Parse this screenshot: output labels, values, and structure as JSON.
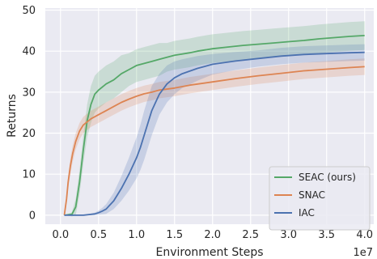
{
  "chart_data": {
    "type": "line",
    "title": "",
    "xlabel": "Environment Steps",
    "ylabel": "Returns",
    "x_scale_label": "1e7",
    "xlim": [
      -0.2,
      4.12
    ],
    "ylim": [
      -2.2,
      50.5
    ],
    "x_ticks": [
      0.0,
      0.5,
      1.0,
      1.5,
      2.0,
      2.5,
      3.0,
      3.5,
      4.0
    ],
    "x_tick_labels": [
      "0.0",
      "0.5",
      "1.0",
      "1.5",
      "2.0",
      "2.5",
      "3.0",
      "3.5",
      "4.0"
    ],
    "y_ticks": [
      0,
      10,
      20,
      30,
      40,
      50
    ],
    "y_tick_labels": [
      "0",
      "10",
      "20",
      "30",
      "40",
      "50"
    ],
    "grid": true,
    "legend_position": "bottom-right",
    "series": [
      {
        "name": "SEAC (ours)",
        "color": "#55a868",
        "x": [
          0.05,
          0.15,
          0.2,
          0.25,
          0.3,
          0.35,
          0.4,
          0.45,
          0.5,
          0.6,
          0.7,
          0.8,
          0.9,
          1.0,
          1.1,
          1.2,
          1.3,
          1.4,
          1.5,
          1.6,
          1.7,
          1.8,
          1.9,
          2.0,
          2.2,
          2.4,
          2.6,
          2.8,
          3.0,
          3.2,
          3.4,
          3.6,
          3.8,
          4.0
        ],
        "y": [
          0,
          0.2,
          2,
          8,
          16,
          23,
          27,
          29.5,
          30.5,
          32,
          33,
          34.5,
          35.5,
          36.5,
          37,
          37.5,
          38,
          38.5,
          39,
          39.3,
          39.6,
          40,
          40.3,
          40.6,
          41,
          41.4,
          41.7,
          42,
          42.3,
          42.6,
          43,
          43.3,
          43.6,
          43.8
        ],
        "band": [
          0,
          0.5,
          2,
          3,
          3.5,
          4,
          4.5,
          4.5,
          4.5,
          4.5,
          4.5,
          4.5,
          4,
          4,
          4,
          4,
          4,
          3.5,
          3.5,
          3.5,
          3.5,
          3.5,
          3.5,
          3.5,
          3.5,
          3.5,
          3.5,
          3.5,
          3.5,
          3.5,
          3.5,
          3.5,
          3.5,
          3.5
        ]
      },
      {
        "name": "SNAC",
        "color": "#dd8452",
        "x": [
          0.05,
          0.08,
          0.1,
          0.13,
          0.16,
          0.2,
          0.25,
          0.3,
          0.4,
          0.5,
          0.6,
          0.7,
          0.8,
          0.9,
          1.0,
          1.1,
          1.2,
          1.3,
          1.5,
          1.7,
          2.0,
          2.3,
          2.6,
          2.9,
          3.2,
          3.5,
          3.8,
          4.0
        ],
        "y": [
          0,
          4,
          8,
          12,
          15,
          18,
          20.5,
          22,
          23.5,
          24.5,
          25.5,
          26.5,
          27.5,
          28.3,
          29,
          29.6,
          30,
          30.5,
          31,
          31.7,
          32.5,
          33.3,
          34,
          34.6,
          35.2,
          35.6,
          36,
          36.2
        ],
        "band": [
          0,
          1,
          1.5,
          2,
          2,
          2,
          2,
          2,
          2,
          2,
          2,
          2,
          2,
          2,
          2,
          2,
          2,
          2,
          2,
          2,
          2,
          2,
          2,
          2,
          2,
          2,
          2,
          2
        ]
      },
      {
        "name": "IAC",
        "color": "#4c72b0",
        "x": [
          0.05,
          0.3,
          0.45,
          0.5,
          0.55,
          0.6,
          0.7,
          0.8,
          0.9,
          1.0,
          1.05,
          1.1,
          1.15,
          1.2,
          1.25,
          1.3,
          1.4,
          1.5,
          1.6,
          1.8,
          2.0,
          2.3,
          2.6,
          2.9,
          3.2,
          3.5,
          3.8,
          4.0
        ],
        "y": [
          0,
          0,
          0.3,
          0.6,
          1,
          1.5,
          3.5,
          6.5,
          10,
          14,
          16.5,
          19.5,
          22.5,
          25.5,
          27.5,
          29.5,
          32,
          33.5,
          34.5,
          35.8,
          36.8,
          37.6,
          38.2,
          38.8,
          39.2,
          39.4,
          39.6,
          39.7
        ],
        "band": [
          0,
          0,
          0.3,
          0.5,
          0.8,
          1.2,
          2,
          3,
          4,
          5,
          5.5,
          6,
          6,
          6,
          5.5,
          5,
          4.5,
          4,
          3.5,
          3,
          2.5,
          2.2,
          2,
          2,
          2,
          2,
          2,
          2
        ]
      }
    ]
  }
}
